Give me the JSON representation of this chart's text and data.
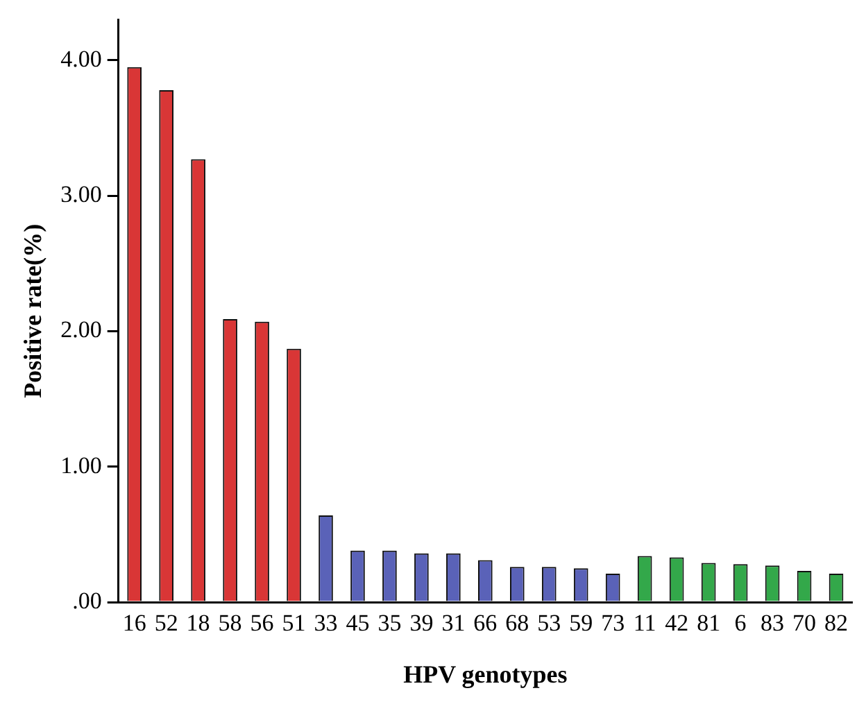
{
  "chart_data": {
    "type": "bar",
    "xlabel": "HPV genotypes",
    "ylabel": "Positive rate(%)",
    "categories": [
      "16",
      "52",
      "18",
      "58",
      "56",
      "51",
      "33",
      "45",
      "35",
      "39",
      "31",
      "66",
      "68",
      "53",
      "59",
      "73",
      "11",
      "42",
      "81",
      "6",
      "83",
      "70",
      "82"
    ],
    "values": [
      3.95,
      3.78,
      3.27,
      2.09,
      2.07,
      1.87,
      0.64,
      0.38,
      0.38,
      0.36,
      0.36,
      0.31,
      0.26,
      0.26,
      0.25,
      0.21,
      0.34,
      0.33,
      0.29,
      0.28,
      0.27,
      0.23,
      0.21
    ],
    "colors": [
      "#d93636",
      "#d93636",
      "#d93636",
      "#d93636",
      "#d93636",
      "#d93636",
      "#5a62b8",
      "#5a62b8",
      "#5a62b8",
      "#5a62b8",
      "#5a62b8",
      "#5a62b8",
      "#5a62b8",
      "#5a62b8",
      "#5a62b8",
      "#5a62b8",
      "#33a84a",
      "#33a84a",
      "#33a84a",
      "#33a84a",
      "#33a84a",
      "#33a84a",
      "#33a84a"
    ],
    "ylim": [
      0,
      4.3
    ],
    "yticks": [
      {
        "value": 0,
        "label": ".00"
      },
      {
        "value": 1,
        "label": "1.00"
      },
      {
        "value": 2,
        "label": "2.00"
      },
      {
        "value": 3,
        "label": "3.00"
      },
      {
        "value": 4,
        "label": "4.00"
      }
    ],
    "grid": false,
    "legend": false
  }
}
